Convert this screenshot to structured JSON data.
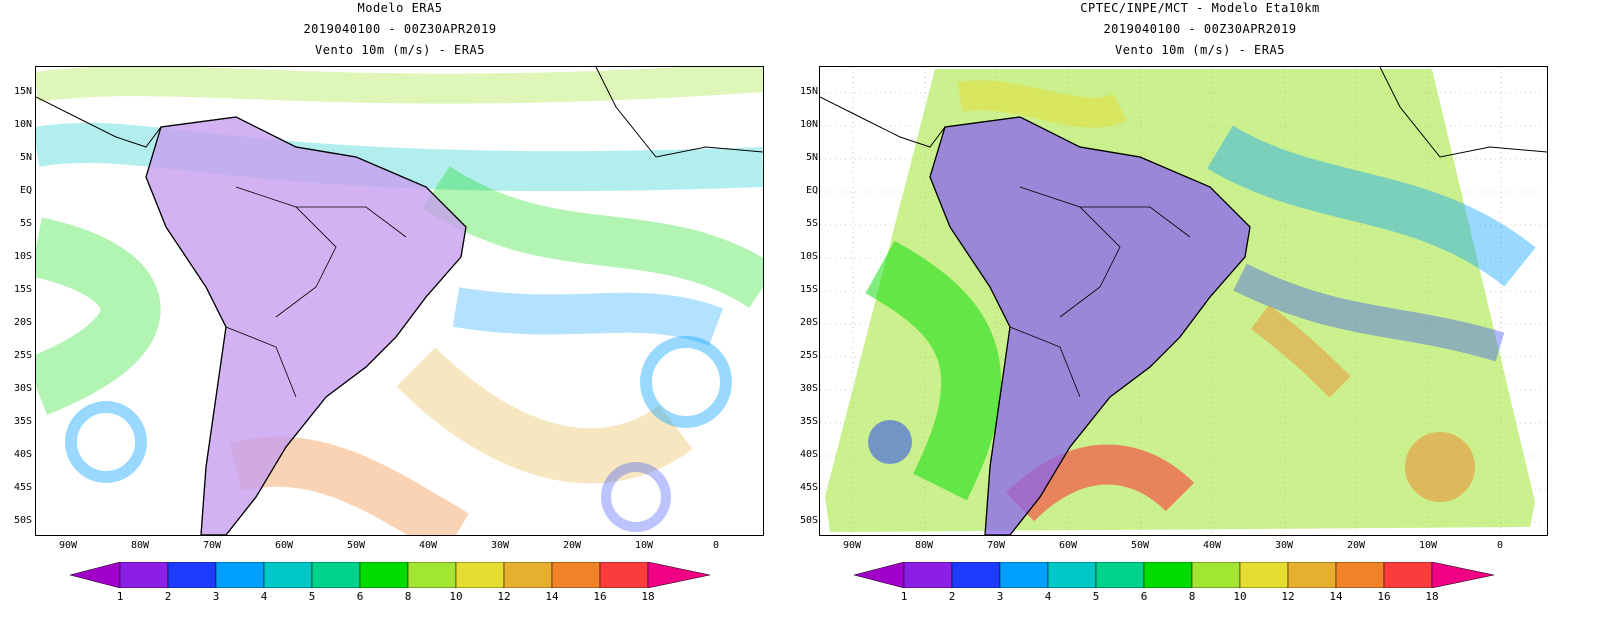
{
  "panels": [
    {
      "id": "left",
      "title_lines": [
        "Modelo ERA5",
        "2019040100 - 00Z30APR2019",
        "Vento 10m (m/s) - ERA5"
      ],
      "lat_labels": [
        "15N",
        "10N",
        "5N",
        "EQ",
        "5S",
        "10S",
        "15S",
        "20S",
        "25S",
        "30S",
        "35S",
        "40S",
        "45S",
        "50S"
      ],
      "lon_labels": [
        "90W",
        "80W",
        "70W",
        "60W",
        "50W",
        "40W",
        "30W",
        "20W",
        "10W",
        "0"
      ],
      "colorbar_labels": [
        "1",
        "2",
        "3",
        "4",
        "5",
        "6",
        "8",
        "10",
        "12",
        "14",
        "16",
        "18"
      ]
    },
    {
      "id": "right",
      "title_lines": [
        "CPTEC/INPE/MCT -  Modelo Eta10km",
        "2019040100 - 00Z30APR2019",
        "Vento 10m (m/s) - ERA5"
      ],
      "lat_labels": [
        "15N",
        "10N",
        "5N",
        "EQ",
        "5S",
        "10S",
        "15S",
        "20S",
        "25S",
        "30S",
        "35S",
        "40S",
        "45S",
        "50S"
      ],
      "lon_labels": [
        "90W",
        "80W",
        "70W",
        "60W",
        "50W",
        "40W",
        "30W",
        "20W",
        "10W",
        "0"
      ],
      "colorbar_labels": [
        "1",
        "2",
        "3",
        "4",
        "5",
        "6",
        "8",
        "10",
        "12",
        "14",
        "16",
        "18"
      ]
    }
  ],
  "colorbar_colors": [
    "#a000c8",
    "#8c1ee6",
    "#1e3cff",
    "#00a0ff",
    "#00c8c8",
    "#00d28c",
    "#00dc00",
    "#a0e632",
    "#e6dc32",
    "#e6af2d",
    "#f08228",
    "#fa3c3c",
    "#f00082"
  ]
}
